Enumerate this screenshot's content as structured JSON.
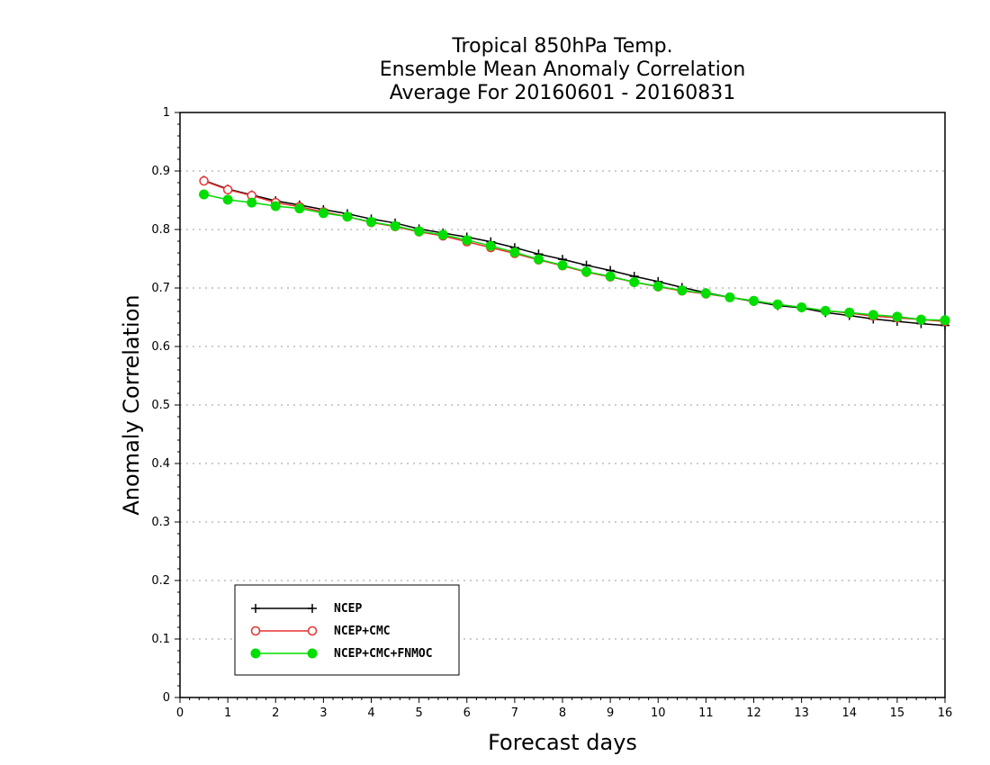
{
  "chart_data": {
    "type": "line",
    "title_lines": [
      "Tropical 850hPa Temp.",
      "Ensemble Mean Anomaly Correlation",
      "Average For 20160601 - 20160831"
    ],
    "xlabel": "Forecast days",
    "ylabel": "Anomaly Correlation",
    "xlim": [
      0,
      16
    ],
    "ylim": [
      0,
      1
    ],
    "x_ticks": [
      "0",
      "1",
      "2",
      "3",
      "4",
      "5",
      "6",
      "7",
      "8",
      "9",
      "10",
      "11",
      "12",
      "13",
      "14",
      "15",
      "16"
    ],
    "y_ticks": [
      "0",
      "0.1",
      "0.2",
      "0.3",
      "0.4",
      "0.5",
      "0.6",
      "0.7",
      "0.8",
      "0.9",
      "1"
    ],
    "grid": "horizontal dotted",
    "legend_position": "bottom-left",
    "x": [
      0.5,
      1,
      1.5,
      2,
      2.5,
      3,
      3.5,
      4,
      4.5,
      5,
      5.5,
      6,
      6.5,
      7,
      7.5,
      8,
      8.5,
      9,
      9.5,
      10,
      10.5,
      11,
      11.5,
      12,
      12.5,
      13,
      13.5,
      14,
      14.5,
      15,
      15.5,
      16
    ],
    "series": [
      {
        "name": "NCEP",
        "color": "#000000",
        "marker": "plus",
        "values": [
          0.884,
          0.869,
          0.859,
          0.849,
          0.842,
          0.834,
          0.827,
          0.818,
          0.811,
          0.801,
          0.794,
          0.787,
          0.779,
          0.769,
          0.758,
          0.749,
          0.739,
          0.73,
          0.72,
          0.711,
          0.701,
          0.692,
          0.684,
          0.677,
          0.67,
          0.666,
          0.658,
          0.653,
          0.647,
          0.643,
          0.639,
          0.636
        ]
      },
      {
        "name": "NCEP+CMC",
        "color": "#e83030",
        "marker": "open-circle",
        "values": [
          0.883,
          0.868,
          0.858,
          0.846,
          0.839,
          0.83,
          0.822,
          0.812,
          0.805,
          0.796,
          0.789,
          0.779,
          0.769,
          0.759,
          0.748,
          0.738,
          0.727,
          0.719,
          0.71,
          0.702,
          0.695,
          0.69,
          0.684,
          0.678,
          0.672,
          0.667,
          0.661,
          0.657,
          0.652,
          0.649,
          0.646,
          0.643
        ]
      },
      {
        "name": "NCEP+CMC+FNMOC",
        "color": "#00dd00",
        "marker": "filled-circle",
        "values": [
          0.86,
          0.851,
          0.846,
          0.84,
          0.836,
          0.828,
          0.822,
          0.813,
          0.806,
          0.797,
          0.791,
          0.782,
          0.772,
          0.761,
          0.749,
          0.739,
          0.728,
          0.72,
          0.71,
          0.703,
          0.696,
          0.691,
          0.684,
          0.678,
          0.672,
          0.667,
          0.661,
          0.658,
          0.654,
          0.651,
          0.646,
          0.645
        ]
      }
    ]
  }
}
